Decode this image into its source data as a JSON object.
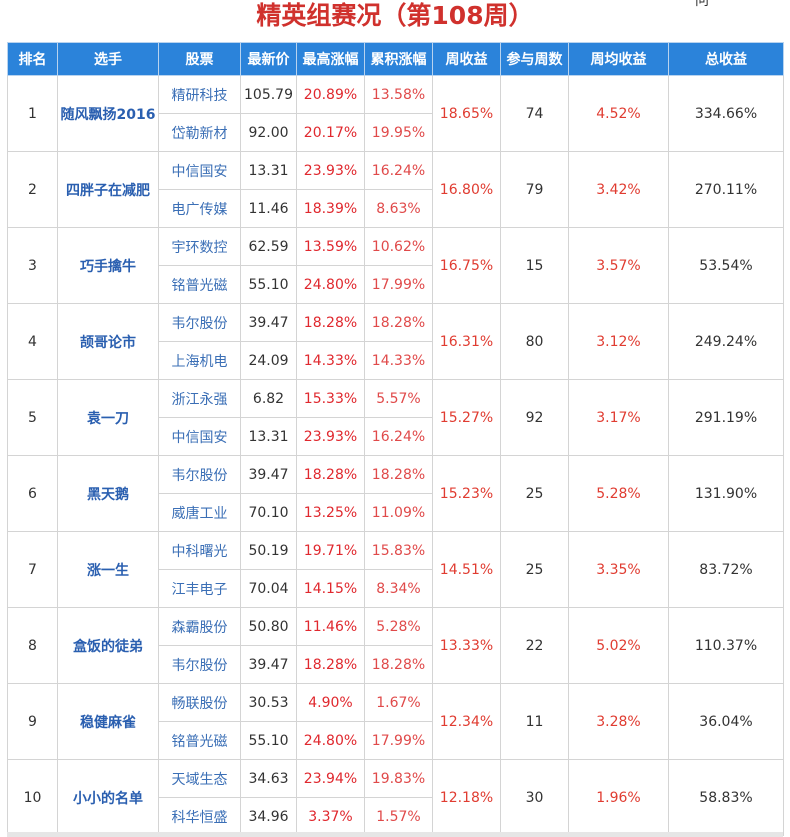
{
  "title": "精英组赛况（第108周）",
  "corner_text": "问",
  "headers": [
    "排名",
    "选手",
    "股票",
    "最新价",
    "最高涨幅",
    "累积涨幅",
    "周收益",
    "参与周数",
    "周均收益",
    "总收益"
  ],
  "rows": [
    {
      "rank": "1",
      "player": "随风飘扬2016",
      "stocks": [
        {
          "name": "精研科技",
          "price": "105.79",
          "high": "20.89%",
          "cum": "13.58%"
        },
        {
          "name": "岱勒新材",
          "price": "92.00",
          "high": "20.17%",
          "cum": "19.95%"
        }
      ],
      "week": "18.65%",
      "weeks": "74",
      "avg": "4.52%",
      "total": "334.66%"
    },
    {
      "rank": "2",
      "player": "四胖子在减肥",
      "stocks": [
        {
          "name": "中信国安",
          "price": "13.31",
          "high": "23.93%",
          "cum": "16.24%"
        },
        {
          "name": "电广传媒",
          "price": "11.46",
          "high": "18.39%",
          "cum": "8.63%"
        }
      ],
      "week": "16.80%",
      "weeks": "79",
      "avg": "3.42%",
      "total": "270.11%"
    },
    {
      "rank": "3",
      "player": "巧手擒牛",
      "stocks": [
        {
          "name": "宇环数控",
          "price": "62.59",
          "high": "13.59%",
          "cum": "10.62%"
        },
        {
          "name": "铭普光磁",
          "price": "55.10",
          "high": "24.80%",
          "cum": "17.99%"
        }
      ],
      "week": "16.75%",
      "weeks": "15",
      "avg": "3.57%",
      "total": "53.54%"
    },
    {
      "rank": "4",
      "player": "颉哥论市",
      "stocks": [
        {
          "name": "韦尔股份",
          "price": "39.47",
          "high": "18.28%",
          "cum": "18.28%"
        },
        {
          "name": "上海机电",
          "price": "24.09",
          "high": "14.33%",
          "cum": "14.33%"
        }
      ],
      "week": "16.31%",
      "weeks": "80",
      "avg": "3.12%",
      "total": "249.24%"
    },
    {
      "rank": "5",
      "player": "袁一刀",
      "stocks": [
        {
          "name": "浙江永强",
          "price": "6.82",
          "high": "15.33%",
          "cum": "5.57%"
        },
        {
          "name": "中信国安",
          "price": "13.31",
          "high": "23.93%",
          "cum": "16.24%"
        }
      ],
      "week": "15.27%",
      "weeks": "92",
      "avg": "3.17%",
      "total": "291.19%"
    },
    {
      "rank": "6",
      "player": "黑天鹅",
      "stocks": [
        {
          "name": "韦尔股份",
          "price": "39.47",
          "high": "18.28%",
          "cum": "18.28%"
        },
        {
          "name": "威唐工业",
          "price": "70.10",
          "high": "13.25%",
          "cum": "11.09%"
        }
      ],
      "week": "15.23%",
      "weeks": "25",
      "avg": "5.28%",
      "total": "131.90%"
    },
    {
      "rank": "7",
      "player": "涨一生",
      "stocks": [
        {
          "name": "中科曙光",
          "price": "50.19",
          "high": "19.71%",
          "cum": "15.83%"
        },
        {
          "name": "江丰电子",
          "price": "70.04",
          "high": "14.15%",
          "cum": "8.34%"
        }
      ],
      "week": "14.51%",
      "weeks": "25",
      "avg": "3.35%",
      "total": "83.72%"
    },
    {
      "rank": "8",
      "player": "盒饭的徒弟",
      "stocks": [
        {
          "name": "森霸股份",
          "price": "50.80",
          "high": "11.46%",
          "cum": "5.28%"
        },
        {
          "name": "韦尔股份",
          "price": "39.47",
          "high": "18.28%",
          "cum": "18.28%"
        }
      ],
      "week": "13.33%",
      "weeks": "22",
      "avg": "5.02%",
      "total": "110.37%"
    },
    {
      "rank": "9",
      "player": "稳健麻雀",
      "stocks": [
        {
          "name": "畅联股份",
          "price": "30.53",
          "high": "4.90%",
          "cum": "1.67%"
        },
        {
          "name": "铭普光磁",
          "price": "55.10",
          "high": "24.80%",
          "cum": "17.99%"
        }
      ],
      "week": "12.34%",
      "weeks": "11",
      "avg": "3.28%",
      "total": "36.04%"
    },
    {
      "rank": "10",
      "player": "小小的名单",
      "stocks": [
        {
          "name": "天域生态",
          "price": "34.63",
          "high": "23.94%",
          "cum": "19.83%"
        },
        {
          "name": "科华恒盛",
          "price": "34.96",
          "high": "3.37%",
          "cum": "1.57%"
        }
      ],
      "week": "12.18%",
      "weeks": "30",
      "avg": "1.96%",
      "total": "58.83%"
    }
  ]
}
